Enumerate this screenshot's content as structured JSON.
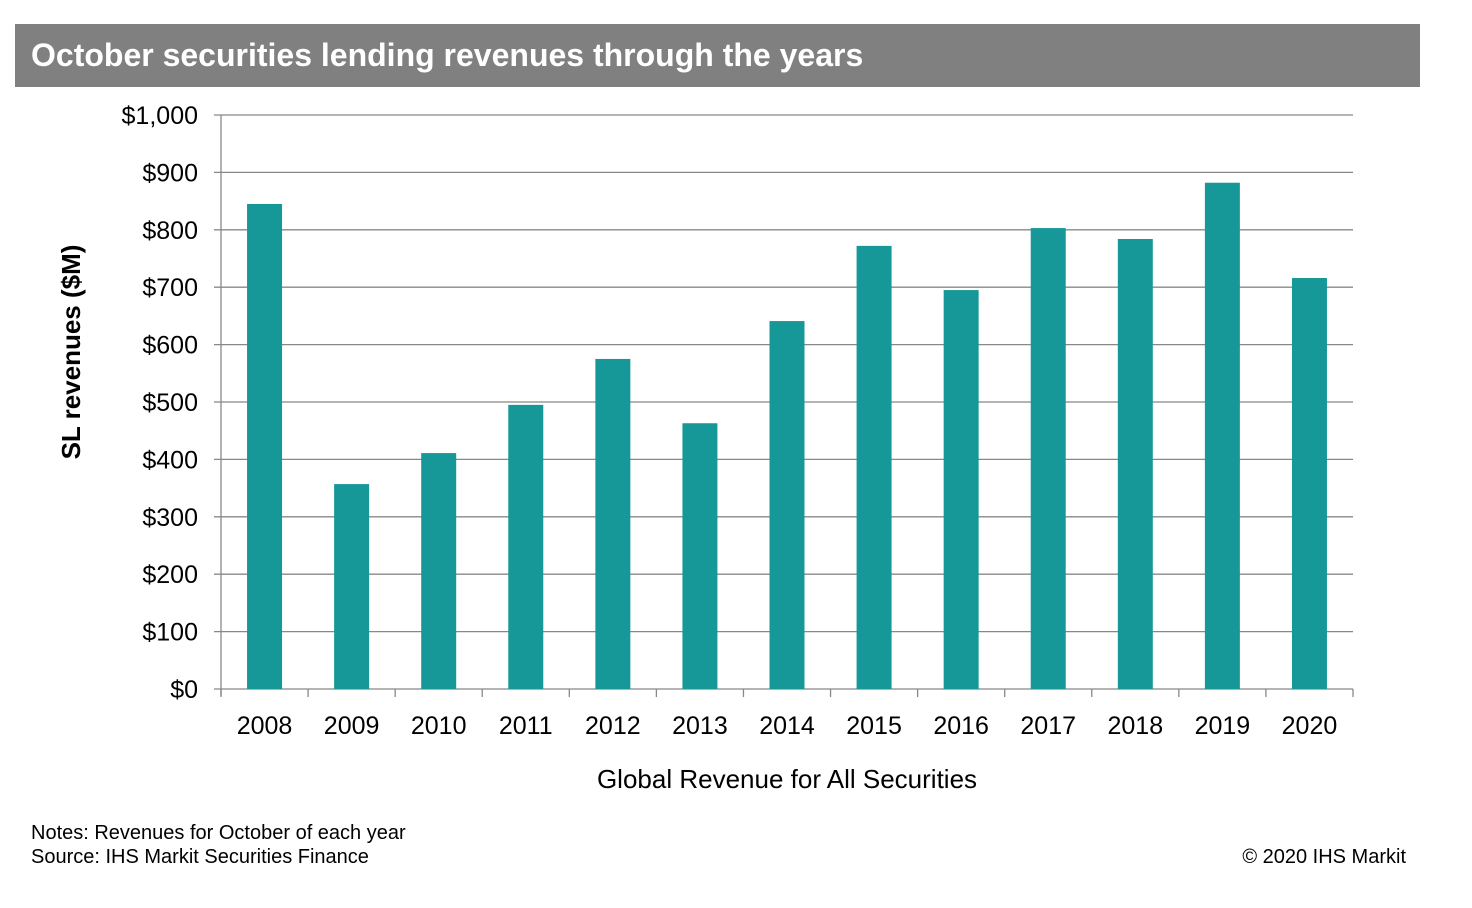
{
  "chart_data": {
    "type": "bar",
    "title": "October securities lending revenues through the years",
    "xlabel": "Global Revenue for All Securities",
    "ylabel": "SL revenues ($M)",
    "categories": [
      "2008",
      "2009",
      "2010",
      "2011",
      "2012",
      "2013",
      "2014",
      "2015",
      "2016",
      "2017",
      "2018",
      "2019",
      "2020"
    ],
    "values": [
      845,
      357,
      411,
      495,
      575,
      463,
      641,
      772,
      695,
      803,
      784,
      882,
      716
    ],
    "ylim": [
      0,
      1000
    ],
    "yticks": [
      0,
      100,
      200,
      300,
      400,
      500,
      600,
      700,
      800,
      900,
      1000
    ],
    "ytick_labels": [
      "$0",
      "$100",
      "$200",
      "$300",
      "$400",
      "$500",
      "$600",
      "$700",
      "$800",
      "$900",
      "$1,000"
    ],
    "grid": true,
    "bar_color": "#179898"
  },
  "notes": "Notes: Revenues for October of each year",
  "source": "Source: IHS Markit  Securities Finance",
  "copyright": "© 2020 IHS Markit"
}
